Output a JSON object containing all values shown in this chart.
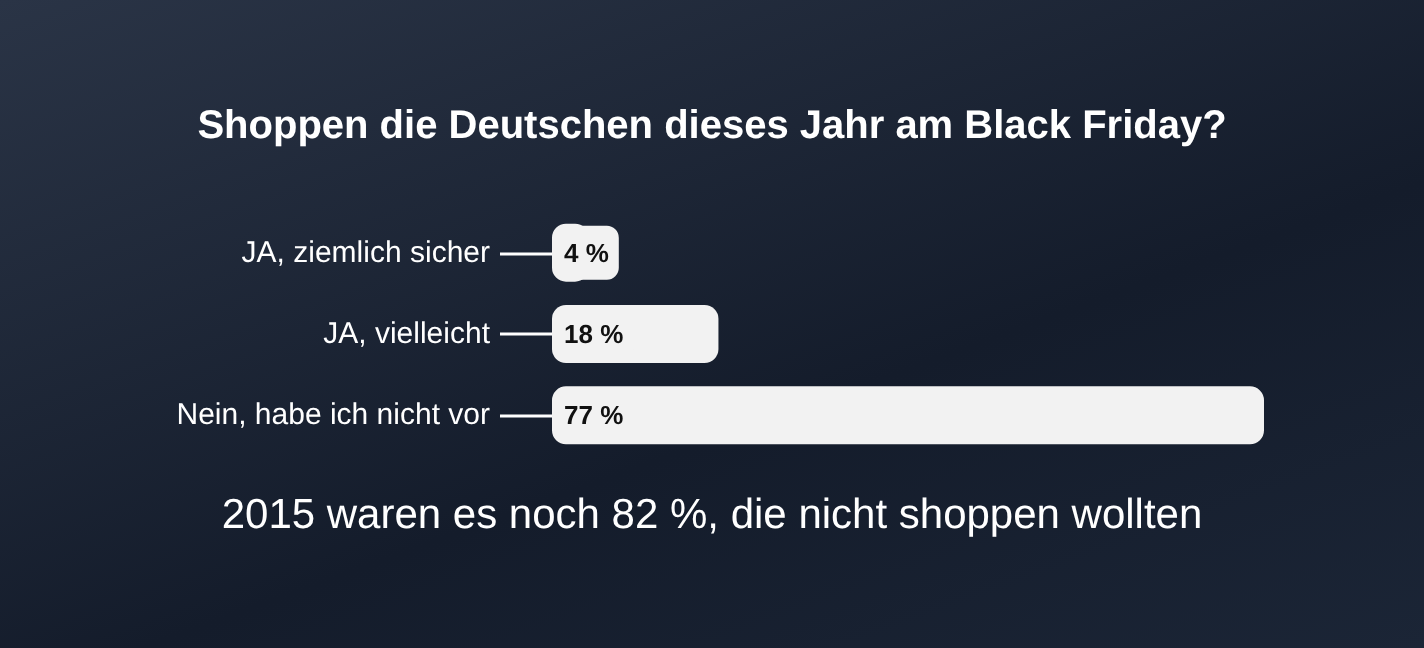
{
  "chart_data": {
    "type": "bar",
    "orientation": "horizontal",
    "title": "Shoppen die Deutschen dieses Jahr am Black Friday?",
    "categories": [
      "JA, ziemlich sicher",
      "JA, vielleicht",
      "Nein, habe ich nicht vor"
    ],
    "values": [
      4,
      18,
      77
    ],
    "color": "#f2f2f2",
    "value_labels": [
      "4 %",
      "18 %",
      "77 %"
    ],
    "annotations": [
      "2015 waren es noch 82 %, die nicht shoppen wollten"
    ]
  }
}
